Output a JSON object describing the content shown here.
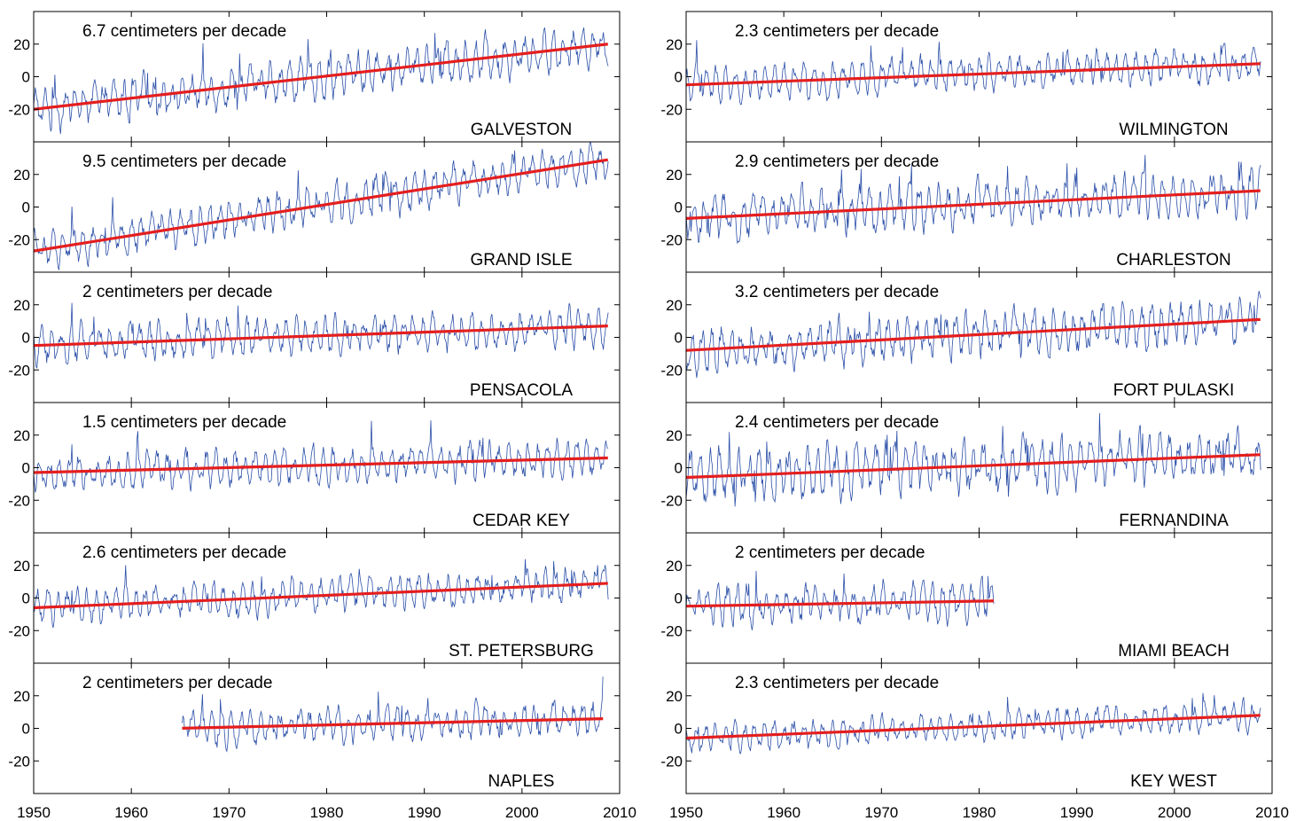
{
  "chart_data": {
    "type": "line",
    "x_axis": {
      "range": [
        1950,
        2010
      ],
      "ticks": [
        1950,
        1960,
        1970,
        1980,
        1990,
        2000,
        2010
      ]
    },
    "y_axis": {
      "range": [
        -40,
        40
      ],
      "ticks": [
        20,
        0,
        -20
      ],
      "tick_labels": [
        "20",
        "0",
        "-20"
      ]
    },
    "grid": false,
    "colors": {
      "monthly": "#2b4fa8",
      "trend": "#e41e1e",
      "axes": "#000000"
    },
    "panels": [
      {
        "station": "GALVESTON",
        "rate_label": "6.7 centimeters per decade",
        "column": "left",
        "x_start": 1950,
        "x_end": 2008.8,
        "trend": [
          -20,
          20
        ],
        "amplitude": 12
      },
      {
        "station": "GRAND ISLE",
        "rate_label": "9.5 centimeters per decade",
        "column": "left",
        "x_start": 1950,
        "x_end": 2008.8,
        "trend": [
          -27,
          29
        ],
        "amplitude": 11
      },
      {
        "station": "PENSACOLA",
        "rate_label": "2 centimeters per decade",
        "column": "left",
        "x_start": 1950,
        "x_end": 2008.8,
        "trend": [
          -5,
          7
        ],
        "amplitude": 11
      },
      {
        "station": "CEDAR KEY",
        "rate_label": "1.5 centimeters per decade",
        "column": "left",
        "x_start": 1950,
        "x_end": 2008.8,
        "trend": [
          -3,
          6
        ],
        "amplitude": 11
      },
      {
        "station": "ST. PETERSBURG",
        "rate_label": "2.6 centimeters per decade",
        "column": "left",
        "x_start": 1950,
        "x_end": 2008.8,
        "trend": [
          -6,
          9
        ],
        "amplitude": 10
      },
      {
        "station": "NAPLES",
        "rate_label": "2 centimeters per decade",
        "column": "left",
        "x_start": 1965.2,
        "x_end": 2008.3,
        "trend": [
          -2,
          6
        ],
        "amplitude": 10
      },
      {
        "station": "WILMINGTON",
        "rate_label": "2.3 centimeters per decade",
        "column": "right",
        "x_start": 1950,
        "x_end": 2008.8,
        "trend": [
          -5,
          8
        ],
        "amplitude": 10
      },
      {
        "station": "CHARLESTON",
        "rate_label": "2.9 centimeters per decade",
        "column": "right",
        "x_start": 1950,
        "x_end": 2008.8,
        "trend": [
          -7,
          10
        ],
        "amplitude": 13
      },
      {
        "station": "FORT PULASKI",
        "rate_label": "3.2 centimeters per decade",
        "column": "right",
        "x_start": 1950,
        "x_end": 2008.8,
        "trend": [
          -8,
          11
        ],
        "amplitude": 13
      },
      {
        "station": "FERNANDINA",
        "rate_label": "2.4 centimeters per decade",
        "column": "right",
        "x_start": 1950,
        "x_end": 2008.8,
        "trend": [
          -6,
          8
        ],
        "amplitude": 15
      },
      {
        "station": "MIAMI BEACH",
        "rate_label": "2 centimeters per decade",
        "column": "right",
        "x_start": 1950,
        "x_end": 1981.5,
        "trend": [
          -5,
          1
        ],
        "amplitude": 11
      },
      {
        "station": "KEY WEST",
        "rate_label": "2.3 centimeters per decade",
        "column": "right",
        "x_start": 1950,
        "x_end": 2008.8,
        "trend": [
          -6,
          8
        ],
        "amplitude": 8
      }
    ]
  }
}
